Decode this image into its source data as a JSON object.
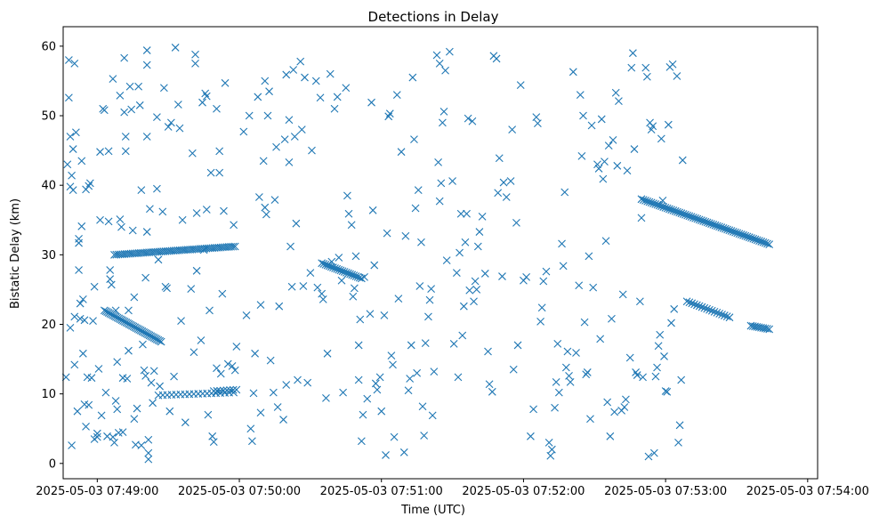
{
  "chart_data": {
    "type": "scatter",
    "title": "Detections in Delay",
    "xlabel": "Time (UTC)",
    "ylabel": "Bistatic Delay (km)",
    "marker": "x",
    "color": "#1f77b4",
    "x_unit": "minutes since 2025-05-03 07:49:00",
    "xlim": [
      -0.24,
      5.07
    ],
    "ylim": [
      -2.2,
      62.8
    ],
    "x_ticks": [
      {
        "value": 0,
        "label": "2025-05-03 07:49:00"
      },
      {
        "value": 1,
        "label": "2025-05-03 07:50:00"
      },
      {
        "value": 2,
        "label": "2025-05-03 07:51:00"
      },
      {
        "value": 3,
        "label": "2025-05-03 07:52:00"
      },
      {
        "value": 4,
        "label": "2025-05-03 07:53:00"
      },
      {
        "value": 5,
        "label": "2025-05-03 07:54:00"
      }
    ],
    "y_ticks": [
      {
        "value": 0,
        "label": "0"
      },
      {
        "value": 10,
        "label": "10"
      },
      {
        "value": 20,
        "label": "20"
      },
      {
        "value": 30,
        "label": "30"
      },
      {
        "value": 40,
        "label": "40"
      },
      {
        "value": 50,
        "label": "50"
      },
      {
        "value": 60,
        "label": "60"
      }
    ],
    "grid": false,
    "track_segments": [
      {
        "name": "track-1",
        "x_start": 0.05,
        "x_end": 0.45,
        "y_start": 22.0,
        "y_end": 17.5,
        "count": 40
      },
      {
        "name": "track-2",
        "x_start": 0.12,
        "x_end": 0.97,
        "y_start": 30.0,
        "y_end": 31.2,
        "count": 60
      },
      {
        "name": "track-3",
        "x_start": 0.43,
        "x_end": 0.96,
        "y_start": 9.8,
        "y_end": 10.2,
        "count": 18
      },
      {
        "name": "track-4",
        "x_start": 1.58,
        "x_end": 1.86,
        "y_start": 28.8,
        "y_end": 26.6,
        "count": 22
      },
      {
        "name": "track-5",
        "x_start": 3.83,
        "x_end": 4.73,
        "y_start": 38.0,
        "y_end": 31.5,
        "count": 65
      },
      {
        "name": "track-6",
        "x_start": 4.15,
        "x_end": 4.45,
        "y_start": 23.3,
        "y_end": 21.0,
        "count": 18
      },
      {
        "name": "track-7",
        "x_start": 4.6,
        "x_end": 4.73,
        "y_start": 19.8,
        "y_end": 19.3,
        "count": 10
      },
      {
        "name": "track-8",
        "x_start": 0.82,
        "x_end": 0.98,
        "y_start": 10.4,
        "y_end": 10.6,
        "count": 8
      }
    ],
    "points": [
      [
        -0.22,
        12.4
      ],
      [
        -0.21,
        43.0
      ],
      [
        -0.2,
        58.0
      ],
      [
        -0.2,
        52.6
      ],
      [
        -0.19,
        39.8
      ],
      [
        -0.19,
        47.0
      ],
      [
        -0.19,
        19.5
      ],
      [
        -0.18,
        2.6
      ],
      [
        -0.18,
        41.4
      ],
      [
        -0.17,
        45.2
      ],
      [
        -0.17,
        39.3
      ],
      [
        -0.16,
        14.2
      ],
      [
        -0.16,
        21.1
      ],
      [
        -0.16,
        57.5
      ],
      [
        -0.15,
        47.6
      ],
      [
        -0.14,
        7.5
      ],
      [
        -0.13,
        32.3
      ],
      [
        -0.13,
        31.7
      ],
      [
        -0.13,
        27.8
      ],
      [
        -0.12,
        23.0
      ],
      [
        -0.12,
        20.8
      ],
      [
        -0.11,
        43.5
      ],
      [
        -0.11,
        34.1
      ],
      [
        -0.1,
        23.6
      ],
      [
        -0.1,
        15.8
      ],
      [
        -0.09,
        8.5
      ],
      [
        -0.09,
        20.6
      ],
      [
        -0.08,
        39.4
      ],
      [
        -0.08,
        5.3
      ],
      [
        -0.07,
        12.4
      ],
      [
        -0.06,
        39.9
      ],
      [
        -0.06,
        8.4
      ],
      [
        -0.05,
        40.3
      ],
      [
        -0.04,
        12.3
      ],
      [
        -0.03,
        20.5
      ],
      [
        -0.02,
        3.5
      ],
      [
        -0.02,
        25.4
      ],
      [
        0.0,
        4.3
      ],
      [
        0.0,
        3.8
      ],
      [
        0.01,
        13.6
      ],
      [
        0.02,
        44.8
      ],
      [
        0.02,
        35.0
      ],
      [
        0.03,
        6.9
      ],
      [
        0.04,
        51.0
      ],
      [
        0.05,
        50.8
      ],
      [
        0.06,
        10.2
      ],
      [
        0.07,
        3.9
      ],
      [
        0.08,
        34.8
      ],
      [
        0.08,
        44.9
      ],
      [
        0.09,
        26.5
      ],
      [
        0.09,
        27.8
      ],
      [
        0.1,
        25.7
      ],
      [
        0.11,
        55.3
      ],
      [
        0.11,
        3.8
      ],
      [
        0.12,
        3.0
      ],
      [
        0.13,
        9.0
      ],
      [
        0.13,
        22.0
      ],
      [
        0.14,
        14.6
      ],
      [
        0.14,
        7.8
      ],
      [
        0.15,
        4.4
      ],
      [
        0.16,
        52.9
      ],
      [
        0.16,
        35.1
      ],
      [
        0.17,
        34.0
      ],
      [
        0.18,
        4.5
      ],
      [
        0.18,
        12.3
      ],
      [
        0.19,
        58.3
      ],
      [
        0.19,
        50.5
      ],
      [
        0.2,
        47.0
      ],
      [
        0.2,
        44.9
      ],
      [
        0.21,
        12.2
      ],
      [
        0.22,
        16.2
      ],
      [
        0.22,
        22.0
      ],
      [
        0.23,
        54.2
      ],
      [
        0.24,
        50.9
      ],
      [
        0.25,
        33.5
      ],
      [
        0.26,
        6.4
      ],
      [
        0.26,
        23.9
      ],
      [
        0.27,
        2.7
      ],
      [
        0.28,
        7.9
      ],
      [
        0.29,
        54.2
      ],
      [
        0.3,
        51.5
      ],
      [
        0.31,
        2.6
      ],
      [
        0.31,
        39.3
      ],
      [
        0.32,
        17.1
      ],
      [
        0.33,
        13.4
      ],
      [
        0.34,
        26.7
      ],
      [
        0.34,
        12.6
      ],
      [
        0.35,
        47.0
      ],
      [
        0.35,
        59.4
      ],
      [
        0.35,
        57.3
      ],
      [
        0.35,
        33.3
      ],
      [
        0.36,
        0.6
      ],
      [
        0.36,
        1.5
      ],
      [
        0.36,
        3.4
      ],
      [
        0.37,
        36.6
      ],
      [
        0.38,
        11.6
      ],
      [
        0.39,
        8.7
      ],
      [
        0.4,
        13.3
      ],
      [
        0.42,
        49.8
      ],
      [
        0.42,
        39.5
      ],
      [
        0.43,
        29.3
      ],
      [
        0.44,
        11.1
      ],
      [
        0.46,
        36.2
      ],
      [
        0.47,
        54.0
      ],
      [
        0.48,
        25.4
      ],
      [
        0.49,
        25.2
      ],
      [
        0.5,
        48.4
      ],
      [
        0.51,
        7.5
      ],
      [
        0.52,
        49.0
      ],
      [
        0.54,
        12.5
      ],
      [
        0.55,
        59.8
      ],
      [
        0.57,
        51.6
      ],
      [
        0.58,
        48.2
      ],
      [
        0.59,
        20.5
      ],
      [
        0.6,
        35.0
      ],
      [
        0.62,
        5.9
      ],
      [
        0.66,
        25.1
      ],
      [
        0.67,
        44.6
      ],
      [
        0.68,
        16.0
      ],
      [
        0.69,
        58.8
      ],
      [
        0.69,
        57.5
      ],
      [
        0.7,
        36.0
      ],
      [
        0.7,
        27.7
      ],
      [
        0.73,
        17.7
      ],
      [
        0.74,
        51.9
      ],
      [
        0.75,
        30.7
      ],
      [
        0.76,
        53.2
      ],
      [
        0.77,
        36.5
      ],
      [
        0.77,
        52.8
      ],
      [
        0.78,
        7.0
      ],
      [
        0.79,
        22.0
      ],
      [
        0.8,
        41.8
      ],
      [
        0.81,
        3.9
      ],
      [
        0.82,
        3.1
      ],
      [
        0.84,
        51.0
      ],
      [
        0.84,
        13.7
      ],
      [
        0.86,
        41.8
      ],
      [
        0.86,
        44.9
      ],
      [
        0.87,
        12.9
      ],
      [
        0.88,
        24.4
      ],
      [
        0.89,
        36.3
      ],
      [
        0.9,
        54.7
      ],
      [
        0.92,
        14.3
      ],
      [
        0.95,
        14.0
      ],
      [
        0.96,
        34.3
      ],
      [
        0.97,
        13.4
      ],
      [
        0.98,
        16.8
      ],
      [
        1.03,
        47.7
      ],
      [
        1.05,
        21.3
      ],
      [
        1.07,
        50.0
      ],
      [
        1.08,
        5.0
      ],
      [
        1.09,
        3.2
      ],
      [
        1.1,
        10.1
      ],
      [
        1.11,
        15.8
      ],
      [
        1.13,
        52.7
      ],
      [
        1.14,
        38.3
      ],
      [
        1.15,
        7.3
      ],
      [
        1.15,
        22.8
      ],
      [
        1.17,
        43.5
      ],
      [
        1.18,
        36.8
      ],
      [
        1.18,
        55.0
      ],
      [
        1.19,
        35.8
      ],
      [
        1.2,
        50.0
      ],
      [
        1.21,
        53.5
      ],
      [
        1.22,
        14.8
      ],
      [
        1.24,
        10.2
      ],
      [
        1.25,
        37.9
      ],
      [
        1.26,
        45.5
      ],
      [
        1.27,
        8.1
      ],
      [
        1.28,
        22.6
      ],
      [
        1.31,
        6.3
      ],
      [
        1.32,
        46.6
      ],
      [
        1.33,
        11.3
      ],
      [
        1.33,
        55.9
      ],
      [
        1.35,
        49.4
      ],
      [
        1.35,
        43.3
      ],
      [
        1.36,
        31.2
      ],
      [
        1.37,
        25.4
      ],
      [
        1.38,
        56.6
      ],
      [
        1.39,
        47.0
      ],
      [
        1.4,
        34.5
      ],
      [
        1.41,
        12.0
      ],
      [
        1.43,
        57.8
      ],
      [
        1.44,
        48.0
      ],
      [
        1.45,
        25.5
      ],
      [
        1.46,
        55.5
      ],
      [
        1.48,
        11.6
      ],
      [
        1.5,
        27.4
      ],
      [
        1.51,
        45.0
      ],
      [
        1.54,
        55.0
      ],
      [
        1.55,
        25.3
      ],
      [
        1.57,
        52.6
      ],
      [
        1.58,
        24.4
      ],
      [
        1.59,
        23.6
      ],
      [
        1.61,
        9.4
      ],
      [
        1.62,
        15.8
      ],
      [
        1.64,
        56.0
      ],
      [
        1.65,
        29.0
      ],
      [
        1.67,
        51.0
      ],
      [
        1.69,
        52.7
      ],
      [
        1.7,
        29.6
      ],
      [
        1.72,
        26.3
      ],
      [
        1.73,
        10.2
      ],
      [
        1.75,
        54.0
      ],
      [
        1.76,
        38.5
      ],
      [
        1.77,
        35.9
      ],
      [
        1.79,
        34.3
      ],
      [
        1.8,
        24.0
      ],
      [
        1.81,
        25.2
      ],
      [
        1.82,
        29.8
      ],
      [
        1.84,
        17.0
      ],
      [
        1.84,
        12.0
      ],
      [
        1.85,
        20.7
      ],
      [
        1.86,
        3.2
      ],
      [
        1.87,
        7.0
      ],
      [
        1.88,
        26.8
      ],
      [
        1.9,
        9.3
      ],
      [
        1.92,
        21.5
      ],
      [
        1.93,
        51.9
      ],
      [
        1.94,
        36.4
      ],
      [
        1.95,
        28.5
      ],
      [
        1.96,
        11.5
      ],
      [
        1.97,
        10.6
      ],
      [
        1.99,
        12.4
      ],
      [
        2.0,
        7.5
      ],
      [
        2.02,
        21.3
      ],
      [
        2.03,
        1.2
      ],
      [
        2.04,
        33.1
      ],
      [
        2.05,
        49.9
      ],
      [
        2.06,
        50.3
      ],
      [
        2.07,
        15.5
      ],
      [
        2.08,
        14.2
      ],
      [
        2.09,
        3.8
      ],
      [
        2.11,
        53.0
      ],
      [
        2.12,
        23.7
      ],
      [
        2.14,
        44.8
      ],
      [
        2.16,
        1.6
      ],
      [
        2.17,
        32.7
      ],
      [
        2.19,
        10.5
      ],
      [
        2.2,
        12.2
      ],
      [
        2.21,
        17.0
      ],
      [
        2.22,
        55.5
      ],
      [
        2.23,
        46.6
      ],
      [
        2.24,
        36.7
      ],
      [
        2.25,
        13.0
      ],
      [
        2.26,
        39.3
      ],
      [
        2.27,
        25.5
      ],
      [
        2.28,
        31.8
      ],
      [
        2.29,
        8.2
      ],
      [
        2.3,
        4.0
      ],
      [
        2.31,
        17.3
      ],
      [
        2.33,
        21.1
      ],
      [
        2.34,
        23.5
      ],
      [
        2.35,
        25.1
      ],
      [
        2.36,
        6.9
      ],
      [
        2.37,
        13.2
      ],
      [
        2.39,
        58.7
      ],
      [
        2.4,
        43.3
      ],
      [
        2.41,
        57.5
      ],
      [
        2.41,
        37.7
      ],
      [
        2.42,
        40.3
      ],
      [
        2.43,
        49.0
      ],
      [
        2.44,
        50.6
      ],
      [
        2.45,
        56.5
      ],
      [
        2.46,
        29.2
      ],
      [
        2.48,
        59.2
      ],
      [
        2.5,
        40.6
      ],
      [
        2.51,
        17.2
      ],
      [
        2.53,
        27.4
      ],
      [
        2.54,
        12.4
      ],
      [
        2.55,
        30.3
      ],
      [
        2.56,
        35.9
      ],
      [
        2.57,
        18.4
      ],
      [
        2.58,
        22.6
      ],
      [
        2.59,
        31.8
      ],
      [
        2.6,
        35.9
      ],
      [
        2.61,
        49.6
      ],
      [
        2.62,
        24.9
      ],
      [
        2.64,
        49.2
      ],
      [
        2.65,
        23.3
      ],
      [
        2.66,
        26.2
      ],
      [
        2.67,
        25.0
      ],
      [
        2.68,
        31.2
      ],
      [
        2.69,
        33.3
      ],
      [
        2.71,
        35.5
      ],
      [
        2.73,
        27.3
      ],
      [
        2.75,
        16.1
      ],
      [
        2.76,
        11.4
      ],
      [
        2.78,
        10.3
      ],
      [
        2.79,
        58.6
      ],
      [
        2.81,
        58.2
      ],
      [
        2.82,
        38.9
      ],
      [
        2.83,
        43.9
      ],
      [
        2.85,
        26.9
      ],
      [
        2.86,
        40.4
      ],
      [
        2.88,
        38.3
      ],
      [
        2.91,
        40.6
      ],
      [
        2.92,
        48.0
      ],
      [
        2.93,
        13.5
      ],
      [
        2.95,
        34.6
      ],
      [
        2.96,
        17.0
      ],
      [
        2.98,
        54.4
      ],
      [
        3.0,
        26.3
      ],
      [
        3.02,
        26.8
      ],
      [
        3.05,
        3.9
      ],
      [
        3.07,
        7.8
      ],
      [
        3.09,
        49.8
      ],
      [
        3.1,
        48.9
      ],
      [
        3.12,
        20.4
      ],
      [
        3.13,
        22.4
      ],
      [
        3.14,
        26.2
      ],
      [
        3.16,
        27.6
      ],
      [
        3.18,
        3.0
      ],
      [
        3.19,
        1.1
      ],
      [
        3.2,
        2.0
      ],
      [
        3.22,
        8.0
      ],
      [
        3.23,
        11.7
      ],
      [
        3.24,
        17.2
      ],
      [
        3.25,
        10.2
      ],
      [
        3.27,
        31.6
      ],
      [
        3.28,
        28.4
      ],
      [
        3.29,
        39.0
      ],
      [
        3.3,
        13.8
      ],
      [
        3.31,
        16.1
      ],
      [
        3.32,
        12.6
      ],
      [
        3.33,
        11.7
      ],
      [
        3.35,
        56.3
      ],
      [
        3.37,
        15.9
      ],
      [
        3.39,
        25.6
      ],
      [
        3.4,
        53.0
      ],
      [
        3.41,
        44.2
      ],
      [
        3.42,
        50.0
      ],
      [
        3.43,
        20.3
      ],
      [
        3.44,
        12.8
      ],
      [
        3.45,
        13.1
      ],
      [
        3.46,
        29.8
      ],
      [
        3.47,
        6.4
      ],
      [
        3.48,
        48.6
      ],
      [
        3.49,
        25.3
      ],
      [
        3.52,
        43.0
      ],
      [
        3.53,
        42.4
      ],
      [
        3.54,
        17.9
      ],
      [
        3.55,
        49.5
      ],
      [
        3.56,
        40.9
      ],
      [
        3.57,
        43.4
      ],
      [
        3.58,
        32.0
      ],
      [
        3.59,
        8.8
      ],
      [
        3.6,
        45.7
      ],
      [
        3.61,
        3.9
      ],
      [
        3.62,
        20.8
      ],
      [
        3.63,
        46.5
      ],
      [
        3.64,
        7.4
      ],
      [
        3.65,
        53.3
      ],
      [
        3.66,
        42.8
      ],
      [
        3.67,
        52.1
      ],
      [
        3.69,
        7.6
      ],
      [
        3.7,
        24.3
      ],
      [
        3.71,
        8.1
      ],
      [
        3.72,
        9.2
      ],
      [
        3.73,
        42.1
      ],
      [
        3.75,
        15.2
      ],
      [
        3.76,
        56.9
      ],
      [
        3.77,
        59.0
      ],
      [
        3.78,
        45.2
      ],
      [
        3.79,
        13.1
      ],
      [
        3.8,
        12.7
      ],
      [
        3.82,
        23.3
      ],
      [
        3.83,
        35.3
      ],
      [
        3.84,
        12.4
      ],
      [
        3.86,
        56.9
      ],
      [
        3.87,
        55.6
      ],
      [
        3.88,
        1.0
      ],
      [
        3.89,
        49.0
      ],
      [
        3.9,
        48.0
      ],
      [
        3.91,
        48.5
      ],
      [
        3.92,
        1.5
      ],
      [
        3.93,
        12.5
      ],
      [
        3.94,
        13.8
      ],
      [
        3.95,
        16.9
      ],
      [
        3.96,
        18.5
      ],
      [
        3.97,
        46.7
      ],
      [
        3.98,
        37.8
      ],
      [
        3.99,
        15.4
      ],
      [
        4.0,
        10.4
      ],
      [
        4.01,
        10.3
      ],
      [
        4.02,
        48.7
      ],
      [
        4.03,
        57.0
      ],
      [
        4.04,
        20.2
      ],
      [
        4.05,
        57.4
      ],
      [
        4.06,
        22.2
      ],
      [
        4.08,
        55.7
      ],
      [
        4.09,
        3.0
      ],
      [
        4.1,
        5.5
      ],
      [
        4.11,
        12.0
      ],
      [
        4.12,
        43.6
      ]
    ]
  }
}
